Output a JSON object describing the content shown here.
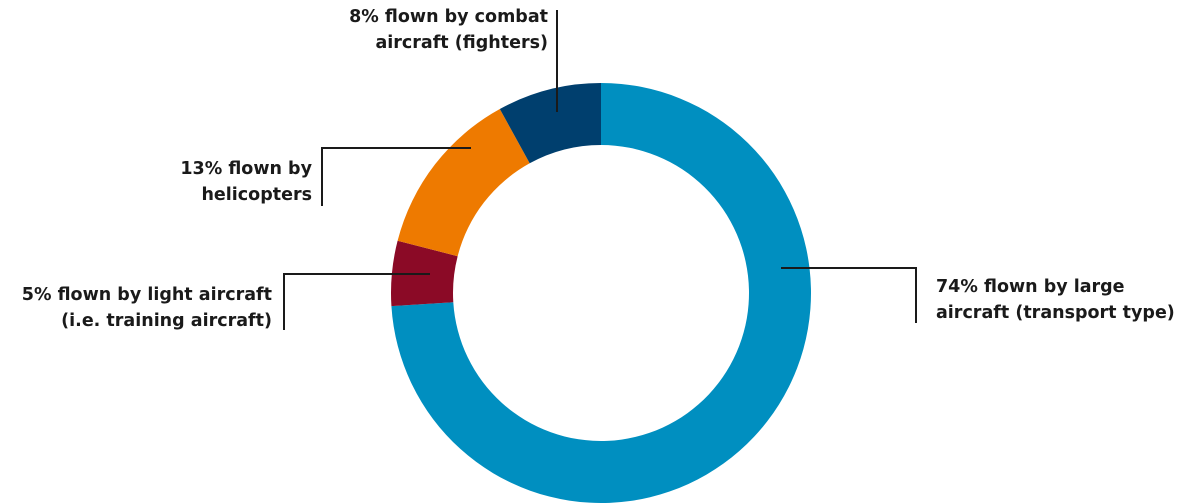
{
  "chart_data": {
    "type": "pie",
    "title": "",
    "donut": true,
    "slices": [
      {
        "name": "large aircraft (transport type)",
        "value": 74,
        "color": "#008fc0",
        "label_lines": [
          "74% flown by large",
          "aircraft (transport type)"
        ]
      },
      {
        "name": "light aircraft (i.e. training aircraft)",
        "value": 5,
        "color": "#8b0a26",
        "label_lines": [
          "5% flown by light aircraft",
          "(i.e. training aircraft)"
        ]
      },
      {
        "name": "helicopters",
        "value": 13,
        "color": "#ee7a00",
        "label_lines": [
          "13% flown by",
          "helicopters"
        ]
      },
      {
        "name": "combat aircraft (fighters)",
        "value": 8,
        "color": "#003f6e",
        "label_lines": [
          "8% flown by combat",
          "aircraft (fighters)"
        ]
      }
    ]
  }
}
